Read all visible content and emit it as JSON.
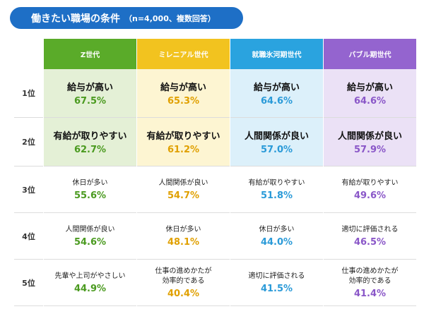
{
  "header": {
    "title": "働きたい職場の条件",
    "subtitle": "（n=4,000、複数回答）"
  },
  "colors": {
    "title_bg": "#1e6fc6",
    "gen_z": "#5aab29",
    "millennial": "#f2c31f",
    "shushoku_hyogaki": "#2aa3df",
    "bubble": "#9464cf"
  },
  "chart_data": {
    "type": "table",
    "title": "働きたい職場の条件",
    "subtitle": "（n=4,000、複数回答）",
    "columns": [
      "Z世代",
      "ミレニアル世代",
      "就職氷河期世代",
      "バブル期世代"
    ],
    "ranks": [
      "1位",
      "2位",
      "3位",
      "4位",
      "5位"
    ],
    "rows": [
      [
        {
          "label": "給与が高い",
          "value": "67.5%"
        },
        {
          "label": "給与が高い",
          "value": "65.3%"
        },
        {
          "label": "給与が高い",
          "value": "64.6%"
        },
        {
          "label": "給与が高い",
          "value": "64.6%"
        }
      ],
      [
        {
          "label": "有給が取りやすい",
          "value": "62.7%"
        },
        {
          "label": "有給が取りやすい",
          "value": "61.2%"
        },
        {
          "label": "人間関係が良い",
          "value": "57.0%"
        },
        {
          "label": "人間関係が良い",
          "value": "57.9%"
        }
      ],
      [
        {
          "label": "休日が多い",
          "value": "55.6%"
        },
        {
          "label": "人間関係が良い",
          "value": "54.7%"
        },
        {
          "label": "有給が取りやすい",
          "value": "51.8%"
        },
        {
          "label": "有給が取りやすい",
          "value": "49.6%"
        }
      ],
      [
        {
          "label": "人間関係が良い",
          "value": "54.6%"
        },
        {
          "label": "休日が多い",
          "value": "48.1%"
        },
        {
          "label": "休日が多い",
          "value": "44.0%"
        },
        {
          "label": "適切に評価される",
          "value": "46.5%"
        }
      ],
      [
        {
          "label": "先輩や上司がやさしい",
          "value": "44.9%"
        },
        {
          "label": "仕事の進めかたが\n効率的である",
          "value": "40.4%"
        },
        {
          "label": "適切に評価される",
          "value": "41.5%"
        },
        {
          "label": "仕事の進めかたが\n効率的である",
          "value": "41.4%"
        }
      ]
    ]
  }
}
